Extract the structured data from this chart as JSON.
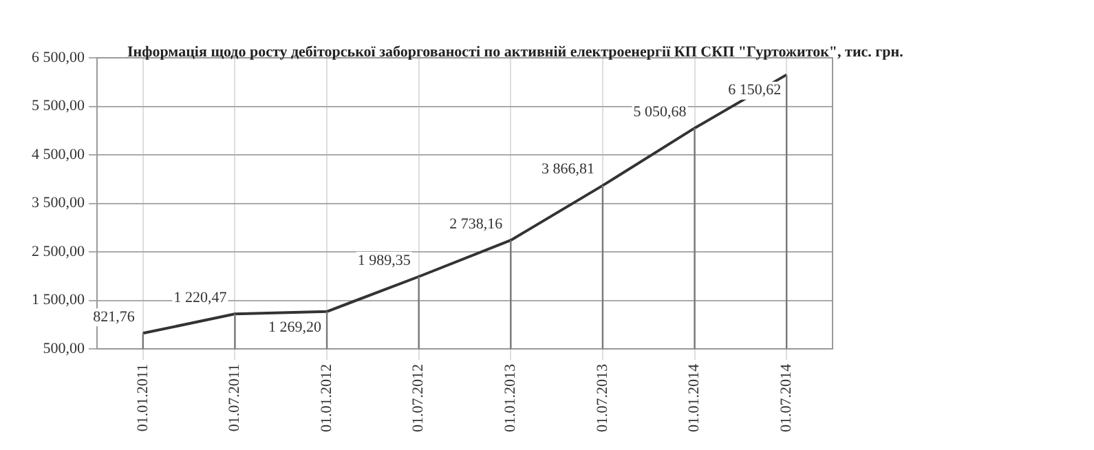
{
  "chart_data": {
    "type": "line",
    "title": "Інформація щодо росту дебіторської заборгованості по активній електроенергії КП СКП \"Гуртожиток\", тис. грн.",
    "categories": [
      "01.01.2011",
      "01.07.2011",
      "01.01.2012",
      "01.07.2012",
      "01.01.2013",
      "01.07.2013",
      "01.01.2014",
      "01.07.2014"
    ],
    "series": [
      {
        "color": "#333333",
        "values": [
          821.76,
          1220.47,
          1269.2,
          1989.35,
          2738.16,
          3866.81,
          5050.68,
          6150.62
        ],
        "value_labels": [
          "821,76",
          "1 220,47",
          "1 269,20",
          "1 989,35",
          "2 738,16",
          "3 866,81",
          "5 050,68",
          "6 150,62"
        ]
      }
    ],
    "ylim": [
      500,
      6500
    ],
    "yticks": [
      {
        "value": 500,
        "label": "500,00"
      },
      {
        "value": 1500,
        "label": "1 500,00"
      },
      {
        "value": 2500,
        "label": "2 500,00"
      },
      {
        "value": 3500,
        "label": "3 500,00"
      },
      {
        "value": 4500,
        "label": "4 500,00"
      },
      {
        "value": 5500,
        "label": "5 500,00"
      },
      {
        "value": 6500,
        "label": "6 500,00"
      }
    ],
    "grid": true,
    "marker": "none",
    "line_style": "solid",
    "legend": false
  }
}
